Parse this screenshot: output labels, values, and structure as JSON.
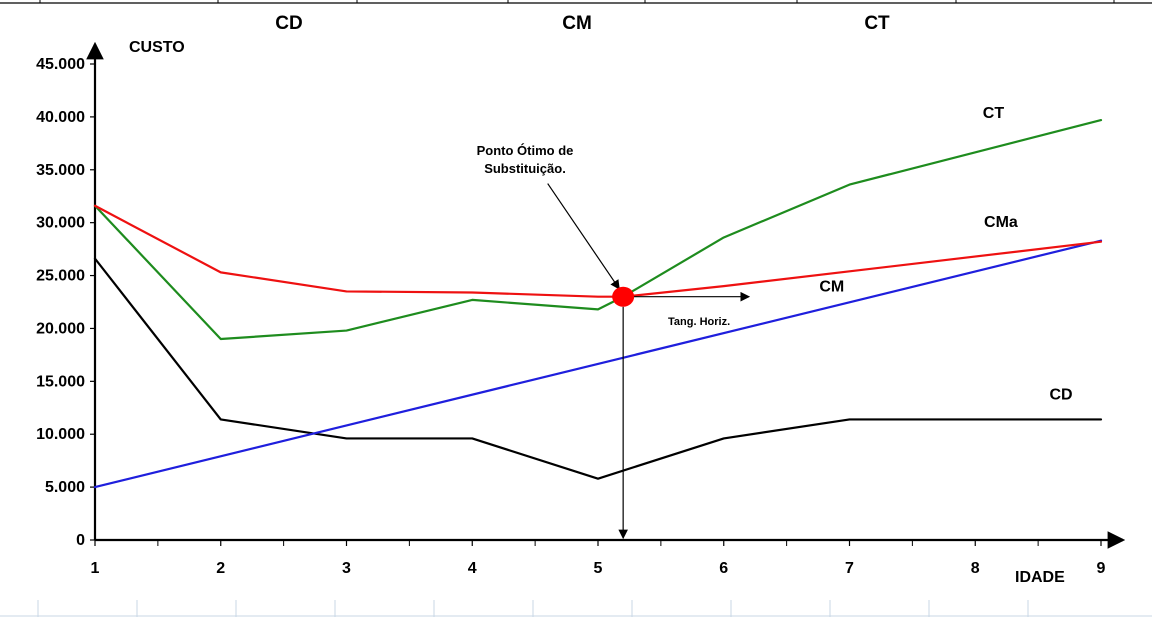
{
  "header": {
    "labels": [
      "CD",
      "CM",
      "CT"
    ]
  },
  "chart_data": {
    "type": "line",
    "title": "",
    "xlabel": "IDADE",
    "ylabel": "CUSTO",
    "x": [
      1,
      2,
      3,
      4,
      5,
      6,
      7,
      8,
      9
    ],
    "xlim": [
      1,
      9
    ],
    "ylim": [
      0,
      45000
    ],
    "x_ticks": [
      "1",
      "2",
      "3",
      "4",
      "5",
      "6",
      "7",
      "8",
      "9"
    ],
    "y_ticks": [
      {
        "value": 0,
        "label": "0"
      },
      {
        "value": 5000,
        "label": "5.000"
      },
      {
        "value": 10000,
        "label": "10.000"
      },
      {
        "value": 15000,
        "label": "15.000"
      },
      {
        "value": 20000,
        "label": "20.000"
      },
      {
        "value": 25000,
        "label": "25.000"
      },
      {
        "value": 30000,
        "label": "30.000"
      },
      {
        "value": 35000,
        "label": "35.000"
      },
      {
        "value": 40000,
        "label": "40.000"
      },
      {
        "value": 45000,
        "label": "45.000"
      }
    ],
    "grid": false,
    "series": [
      {
        "name": "CD",
        "color": "#000000",
        "points": [
          [
            1,
            26600
          ],
          [
            2,
            11400
          ],
          [
            3,
            9600
          ],
          [
            4,
            9600
          ],
          [
            5,
            5800
          ],
          [
            6,
            9600
          ],
          [
            7,
            11400
          ],
          [
            8,
            11400
          ],
          [
            9,
            11400
          ]
        ]
      },
      {
        "name": "CM",
        "color": "#1f1fdd",
        "points": [
          [
            1,
            5000
          ],
          [
            9,
            28300
          ]
        ]
      },
      {
        "name": "CT",
        "color": "#1e8c1e",
        "points": [
          [
            1,
            31600
          ],
          [
            2,
            19000
          ],
          [
            3,
            19800
          ],
          [
            4,
            22700
          ],
          [
            5,
            21800
          ],
          [
            5.2,
            23000
          ],
          [
            6,
            28600
          ],
          [
            7,
            33600
          ],
          [
            9,
            39700
          ]
        ]
      },
      {
        "name": "CMa",
        "color": "#ee1111",
        "points": [
          [
            1,
            31600
          ],
          [
            2,
            25300
          ],
          [
            3,
            23500
          ],
          [
            4,
            23400
          ],
          [
            5,
            23000
          ],
          [
            5.2,
            23000
          ],
          [
            6,
            24000
          ],
          [
            9,
            28200
          ]
        ]
      }
    ],
    "series_label_anchors": [
      {
        "name": "CT",
        "x": 8.06,
        "y": 39900
      },
      {
        "name": "CMa",
        "x": 8.07,
        "y": 29600
      },
      {
        "name": "CM",
        "x": 6.76,
        "y": 23500
      },
      {
        "name": "CD",
        "x": 8.59,
        "y": 13300
      }
    ],
    "optimum_point": {
      "x": 5.2,
      "y": 23000
    },
    "annotations": {
      "optimum_label_lines": [
        "Ponto Ótimo de",
        "Substituição."
      ],
      "tangent_label": "Tang. Horiz."
    }
  }
}
